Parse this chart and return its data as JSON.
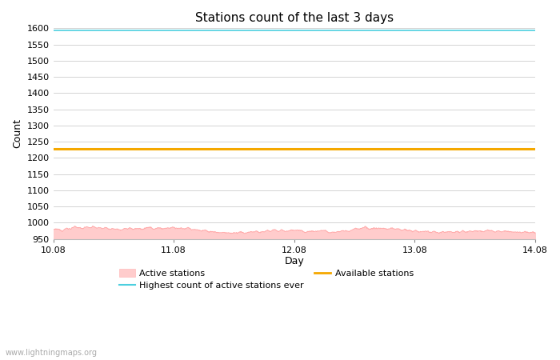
{
  "title": "Stations count of the last 3 days",
  "xlabel": "Day",
  "ylabel": "Count",
  "ylim": [
    950,
    1600
  ],
  "yticks": [
    950,
    1000,
    1050,
    1100,
    1150,
    1200,
    1250,
    1300,
    1350,
    1400,
    1450,
    1500,
    1550,
    1600
  ],
  "x_start": 0,
  "x_end": 4,
  "xtick_positions": [
    0,
    1,
    2,
    3,
    4
  ],
  "xtick_labels": [
    "10.08",
    "11.08",
    "12.08",
    "13.08",
    "14.08"
  ],
  "highest_ever_y": 1593,
  "highest_ever_color": "#4dcfdf",
  "available_stations_y": 1228,
  "available_stations_color": "#f5a800",
  "active_fill_color": "#ffcccc",
  "active_line_color": "#ffaaaa",
  "active_mean": 976,
  "active_noise_amplitude": 8,
  "background_color": "#ffffff",
  "grid_color": "#cccccc",
  "title_fontsize": 11,
  "axis_fontsize": 9,
  "tick_fontsize": 8,
  "watermark": "www.lightningmaps.org",
  "watermark_color": "#aaaaaa"
}
